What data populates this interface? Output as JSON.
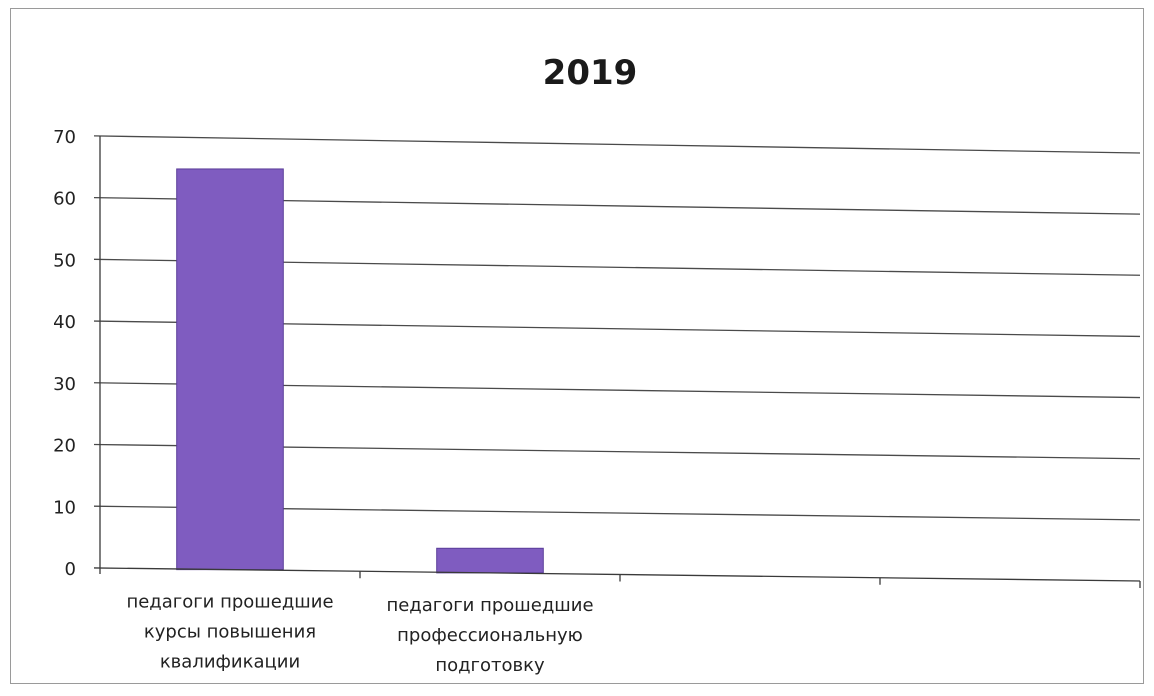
{
  "chart_data": {
    "type": "bar",
    "title": "2019",
    "categories": [
      [
        "педагоги прошедшие",
        "курсы повышения",
        "квалификации"
      ],
      [
        "педагоги прошедшие",
        "профессиональную",
        "подготовку"
      ],
      [],
      []
    ],
    "values": [
      65,
      4,
      null,
      null
    ],
    "ylim": [
      0,
      70
    ],
    "yticks": [
      0,
      10,
      20,
      30,
      40,
      50,
      60,
      70
    ],
    "grid": true,
    "legend": "none",
    "bar_color": "#7f5cc0",
    "bar_edge_color": "#5a3d99"
  }
}
